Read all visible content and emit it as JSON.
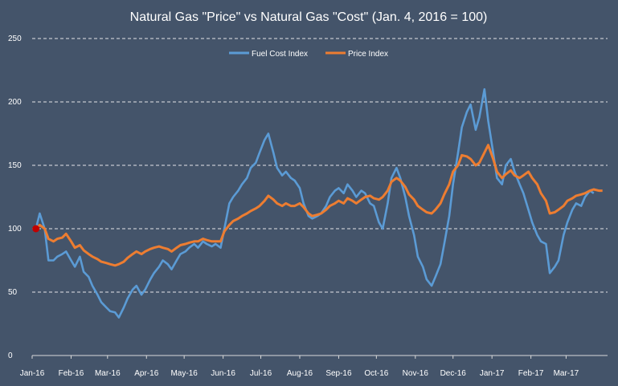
{
  "chart_data": {
    "type": "line",
    "title": "Natural Gas \"Price\" vs Natural Gas \"Cost\" (Jan. 4, 2016 = 100)",
    "xlabel": "",
    "ylabel": "",
    "ylim": [
      0,
      250
    ],
    "y_ticks": [
      "0",
      "50",
      "100",
      "150",
      "200",
      "250"
    ],
    "x_tick_labels": [
      "Jan-16",
      "Feb-16",
      "Mar-16",
      "Apr-16",
      "May-16",
      "Jun-16",
      "Jul-16",
      "Aug-16",
      "Sep-16",
      "Oct-16",
      "Nov-16",
      "Dec-16",
      "Jan-17",
      "Feb-17",
      "Mar-17"
    ],
    "x_tick_dates": [
      "2016-01-01",
      "2016-02-01",
      "2016-03-01",
      "2016-04-01",
      "2016-05-01",
      "2016-06-01",
      "2016-07-01",
      "2016-08-01",
      "2016-09-01",
      "2016-10-01",
      "2016-11-01",
      "2016-12-01",
      "2017-01-01",
      "2017-02-01",
      "2017-03-01"
    ],
    "x_range": [
      "2016-01-01",
      "2017-04-03"
    ],
    "grid": "horizontal dashed",
    "legend_position": "top-center",
    "series": [
      {
        "name": "Fuel Cost Index",
        "color": "#5b9bd5",
        "points": [
          [
            "2016-01-04",
            100
          ],
          [
            "2016-01-07",
            112
          ],
          [
            "2016-01-11",
            100
          ],
          [
            "2016-01-14",
            75
          ],
          [
            "2016-01-18",
            75
          ],
          [
            "2016-01-21",
            78
          ],
          [
            "2016-01-25",
            80
          ],
          [
            "2016-01-28",
            82
          ],
          [
            "2016-02-01",
            75
          ],
          [
            "2016-02-04",
            70
          ],
          [
            "2016-02-08",
            78
          ],
          [
            "2016-02-11",
            66
          ],
          [
            "2016-02-15",
            62
          ],
          [
            "2016-02-18",
            55
          ],
          [
            "2016-02-22",
            48
          ],
          [
            "2016-02-25",
            42
          ],
          [
            "2016-02-29",
            38
          ],
          [
            "2016-03-03",
            35
          ],
          [
            "2016-03-07",
            34
          ],
          [
            "2016-03-10",
            30
          ],
          [
            "2016-03-14",
            38
          ],
          [
            "2016-03-17",
            45
          ],
          [
            "2016-03-21",
            52
          ],
          [
            "2016-03-24",
            55
          ],
          [
            "2016-03-28",
            48
          ],
          [
            "2016-03-31",
            52
          ],
          [
            "2016-04-04",
            60
          ],
          [
            "2016-04-07",
            65
          ],
          [
            "2016-04-11",
            70
          ],
          [
            "2016-04-14",
            75
          ],
          [
            "2016-04-18",
            72
          ],
          [
            "2016-04-21",
            68
          ],
          [
            "2016-04-25",
            75
          ],
          [
            "2016-04-28",
            80
          ],
          [
            "2016-05-02",
            82
          ],
          [
            "2016-05-05",
            85
          ],
          [
            "2016-05-09",
            88
          ],
          [
            "2016-05-12",
            85
          ],
          [
            "2016-05-16",
            90
          ],
          [
            "2016-05-19",
            88
          ],
          [
            "2016-05-23",
            86
          ],
          [
            "2016-05-26",
            88
          ],
          [
            "2016-05-30",
            85
          ],
          [
            "2016-06-02",
            100
          ],
          [
            "2016-06-06",
            120
          ],
          [
            "2016-06-09",
            125
          ],
          [
            "2016-06-13",
            130
          ],
          [
            "2016-06-16",
            135
          ],
          [
            "2016-06-20",
            140
          ],
          [
            "2016-06-23",
            148
          ],
          [
            "2016-06-27",
            152
          ],
          [
            "2016-06-30",
            160
          ],
          [
            "2016-07-04",
            170
          ],
          [
            "2016-07-07",
            175
          ],
          [
            "2016-07-11",
            160
          ],
          [
            "2016-07-14",
            148
          ],
          [
            "2016-07-18",
            142
          ],
          [
            "2016-07-21",
            145
          ],
          [
            "2016-07-25",
            140
          ],
          [
            "2016-07-28",
            138
          ],
          [
            "2016-08-01",
            132
          ],
          [
            "2016-08-04",
            120
          ],
          [
            "2016-08-08",
            110
          ],
          [
            "2016-08-11",
            108
          ],
          [
            "2016-08-15",
            110
          ],
          [
            "2016-08-18",
            112
          ],
          [
            "2016-08-22",
            118
          ],
          [
            "2016-08-25",
            125
          ],
          [
            "2016-08-29",
            130
          ],
          [
            "2016-09-01",
            132
          ],
          [
            "2016-09-05",
            128
          ],
          [
            "2016-09-08",
            135
          ],
          [
            "2016-09-12",
            130
          ],
          [
            "2016-09-15",
            125
          ],
          [
            "2016-09-19",
            130
          ],
          [
            "2016-09-22",
            128
          ],
          [
            "2016-09-26",
            120
          ],
          [
            "2016-09-29",
            118
          ],
          [
            "2016-10-03",
            105
          ],
          [
            "2016-10-06",
            100
          ],
          [
            "2016-10-10",
            120
          ],
          [
            "2016-10-13",
            140
          ],
          [
            "2016-10-17",
            148
          ],
          [
            "2016-10-20",
            140
          ],
          [
            "2016-10-24",
            125
          ],
          [
            "2016-10-27",
            110
          ],
          [
            "2016-10-31",
            95
          ],
          [
            "2016-11-03",
            78
          ],
          [
            "2016-11-07",
            70
          ],
          [
            "2016-11-10",
            60
          ],
          [
            "2016-11-14",
            55
          ],
          [
            "2016-11-17",
            62
          ],
          [
            "2016-11-21",
            72
          ],
          [
            "2016-11-24",
            88
          ],
          [
            "2016-11-28",
            110
          ],
          [
            "2016-12-01",
            135
          ],
          [
            "2016-12-05",
            160
          ],
          [
            "2016-12-08",
            180
          ],
          [
            "2016-12-12",
            192
          ],
          [
            "2016-12-15",
            198
          ],
          [
            "2016-12-19",
            178
          ],
          [
            "2016-12-22",
            188
          ],
          [
            "2016-12-26",
            210
          ],
          [
            "2016-12-29",
            185
          ],
          [
            "2017-01-02",
            160
          ],
          [
            "2017-01-05",
            140
          ],
          [
            "2017-01-09",
            135
          ],
          [
            "2017-01-12",
            150
          ],
          [
            "2017-01-16",
            155
          ],
          [
            "2017-01-19",
            145
          ],
          [
            "2017-01-23",
            135
          ],
          [
            "2017-01-26",
            128
          ],
          [
            "2017-01-30",
            115
          ],
          [
            "2017-02-02",
            105
          ],
          [
            "2017-02-06",
            95
          ],
          [
            "2017-02-09",
            90
          ],
          [
            "2017-02-13",
            88
          ],
          [
            "2017-02-16",
            65
          ],
          [
            "2017-02-20",
            70
          ],
          [
            "2017-02-23",
            75
          ],
          [
            "2017-02-27",
            95
          ],
          [
            "2017-03-02",
            105
          ],
          [
            "2017-03-06",
            115
          ],
          [
            "2017-03-09",
            120
          ],
          [
            "2017-03-13",
            118
          ],
          [
            "2017-03-16",
            125
          ],
          [
            "2017-03-20",
            130
          ],
          [
            "2017-03-23",
            128
          ]
        ]
      },
      {
        "name": "Price Index",
        "color": "#ed7d31",
        "points": [
          [
            "2016-01-04",
            100
          ],
          [
            "2016-01-07",
            103
          ],
          [
            "2016-01-11",
            100
          ],
          [
            "2016-01-14",
            92
          ],
          [
            "2016-01-18",
            90
          ],
          [
            "2016-01-21",
            92
          ],
          [
            "2016-01-25",
            93
          ],
          [
            "2016-01-28",
            96
          ],
          [
            "2016-02-01",
            90
          ],
          [
            "2016-02-04",
            85
          ],
          [
            "2016-02-08",
            87
          ],
          [
            "2016-02-11",
            83
          ],
          [
            "2016-02-15",
            80
          ],
          [
            "2016-02-18",
            78
          ],
          [
            "2016-02-22",
            76
          ],
          [
            "2016-02-25",
            74
          ],
          [
            "2016-02-29",
            73
          ],
          [
            "2016-03-03",
            72
          ],
          [
            "2016-03-07",
            71
          ],
          [
            "2016-03-10",
            72
          ],
          [
            "2016-03-14",
            74
          ],
          [
            "2016-03-17",
            77
          ],
          [
            "2016-03-21",
            80
          ],
          [
            "2016-03-24",
            82
          ],
          [
            "2016-03-28",
            80
          ],
          [
            "2016-03-31",
            82
          ],
          [
            "2016-04-04",
            84
          ],
          [
            "2016-04-07",
            85
          ],
          [
            "2016-04-11",
            86
          ],
          [
            "2016-04-14",
            85
          ],
          [
            "2016-04-18",
            84
          ],
          [
            "2016-04-21",
            82
          ],
          [
            "2016-04-25",
            85
          ],
          [
            "2016-04-28",
            87
          ],
          [
            "2016-05-02",
            88
          ],
          [
            "2016-05-05",
            89
          ],
          [
            "2016-05-09",
            90
          ],
          [
            "2016-05-12",
            90
          ],
          [
            "2016-05-16",
            92
          ],
          [
            "2016-05-19",
            91
          ],
          [
            "2016-05-23",
            90
          ],
          [
            "2016-05-26",
            90
          ],
          [
            "2016-05-30",
            90
          ],
          [
            "2016-06-02",
            98
          ],
          [
            "2016-06-06",
            103
          ],
          [
            "2016-06-09",
            106
          ],
          [
            "2016-06-13",
            108
          ],
          [
            "2016-06-16",
            110
          ],
          [
            "2016-06-20",
            112
          ],
          [
            "2016-06-23",
            114
          ],
          [
            "2016-06-27",
            116
          ],
          [
            "2016-06-30",
            118
          ],
          [
            "2016-07-04",
            122
          ],
          [
            "2016-07-07",
            126
          ],
          [
            "2016-07-11",
            123
          ],
          [
            "2016-07-14",
            120
          ],
          [
            "2016-07-18",
            118
          ],
          [
            "2016-07-21",
            120
          ],
          [
            "2016-07-25",
            118
          ],
          [
            "2016-07-28",
            118
          ],
          [
            "2016-08-01",
            120
          ],
          [
            "2016-08-04",
            117
          ],
          [
            "2016-08-08",
            112
          ],
          [
            "2016-08-11",
            110
          ],
          [
            "2016-08-15",
            111
          ],
          [
            "2016-08-18",
            112
          ],
          [
            "2016-08-22",
            115
          ],
          [
            "2016-08-25",
            118
          ],
          [
            "2016-08-29",
            120
          ],
          [
            "2016-09-01",
            122
          ],
          [
            "2016-09-05",
            120
          ],
          [
            "2016-09-08",
            124
          ],
          [
            "2016-09-12",
            122
          ],
          [
            "2016-09-15",
            120
          ],
          [
            "2016-09-19",
            123
          ],
          [
            "2016-09-22",
            125
          ],
          [
            "2016-09-26",
            126
          ],
          [
            "2016-09-29",
            124
          ],
          [
            "2016-10-03",
            123
          ],
          [
            "2016-10-06",
            125
          ],
          [
            "2016-10-10",
            130
          ],
          [
            "2016-10-13",
            137
          ],
          [
            "2016-10-17",
            140
          ],
          [
            "2016-10-20",
            138
          ],
          [
            "2016-10-24",
            133
          ],
          [
            "2016-10-27",
            127
          ],
          [
            "2016-10-31",
            123
          ],
          [
            "2016-11-03",
            118
          ],
          [
            "2016-11-07",
            115
          ],
          [
            "2016-11-10",
            113
          ],
          [
            "2016-11-14",
            112
          ],
          [
            "2016-11-17",
            115
          ],
          [
            "2016-11-21",
            120
          ],
          [
            "2016-11-24",
            127
          ],
          [
            "2016-11-28",
            135
          ],
          [
            "2016-12-01",
            145
          ],
          [
            "2016-12-05",
            150
          ],
          [
            "2016-12-08",
            158
          ],
          [
            "2016-12-12",
            157
          ],
          [
            "2016-12-15",
            155
          ],
          [
            "2016-12-19",
            150
          ],
          [
            "2016-12-22",
            152
          ],
          [
            "2016-12-26",
            160
          ],
          [
            "2016-12-29",
            166
          ],
          [
            "2017-01-02",
            155
          ],
          [
            "2017-01-05",
            145
          ],
          [
            "2017-01-09",
            140
          ],
          [
            "2017-01-12",
            143
          ],
          [
            "2017-01-16",
            146
          ],
          [
            "2017-01-19",
            142
          ],
          [
            "2017-01-23",
            140
          ],
          [
            "2017-01-26",
            142
          ],
          [
            "2017-01-30",
            145
          ],
          [
            "2017-02-02",
            140
          ],
          [
            "2017-02-06",
            135
          ],
          [
            "2017-02-09",
            128
          ],
          [
            "2017-02-13",
            122
          ],
          [
            "2017-02-16",
            112
          ],
          [
            "2017-02-20",
            113
          ],
          [
            "2017-02-23",
            115
          ],
          [
            "2017-02-27",
            118
          ],
          [
            "2017-03-02",
            122
          ],
          [
            "2017-03-06",
            124
          ],
          [
            "2017-03-09",
            126
          ],
          [
            "2017-03-13",
            127
          ],
          [
            "2017-03-16",
            128
          ],
          [
            "2017-03-20",
            130
          ],
          [
            "2017-03-23",
            131
          ],
          [
            "2017-03-27",
            130
          ],
          [
            "2017-03-30",
            130
          ]
        ]
      }
    ],
    "start_marker": {
      "date": "2016-01-04",
      "value": 100,
      "color": "#c00000"
    }
  }
}
